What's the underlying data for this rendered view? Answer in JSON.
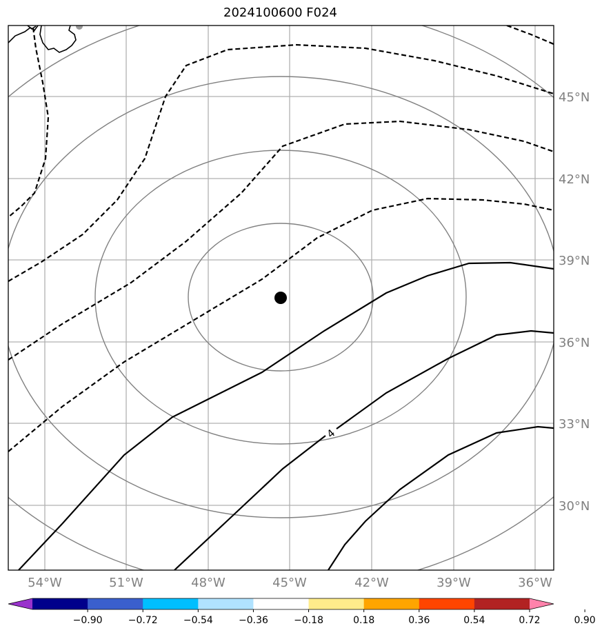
{
  "title": "2024100600 F024",
  "map": {
    "lat_labels": [
      "45°N",
      "42°N",
      "39°N",
      "36°N",
      "33°N",
      "30°N"
    ],
    "lon_labels": [
      "54°W",
      "51°W",
      "48°W",
      "45°W",
      "42°W",
      "39°W",
      "36°W"
    ],
    "contour_label": "4",
    "center_marker": "storm-center-dot",
    "colors": {
      "coastline": "#000000",
      "grid": "#b0b0b0",
      "range_rings": "#808080",
      "contours": "#000000"
    }
  },
  "colorbar": {
    "tick_labels": [
      "−0.90",
      "−0.72",
      "−0.54",
      "−0.36",
      "−0.18",
      "0.18",
      "0.36",
      "0.54",
      "0.72",
      "0.90"
    ],
    "colors": [
      "#9932cc",
      "#00008b",
      "#3a5fcd",
      "#00bfff",
      "#b0e2ff",
      "#ffffff",
      "#ffec8b",
      "#ffa500",
      "#ff4500",
      "#b22222",
      "#ff82ab"
    ]
  }
}
